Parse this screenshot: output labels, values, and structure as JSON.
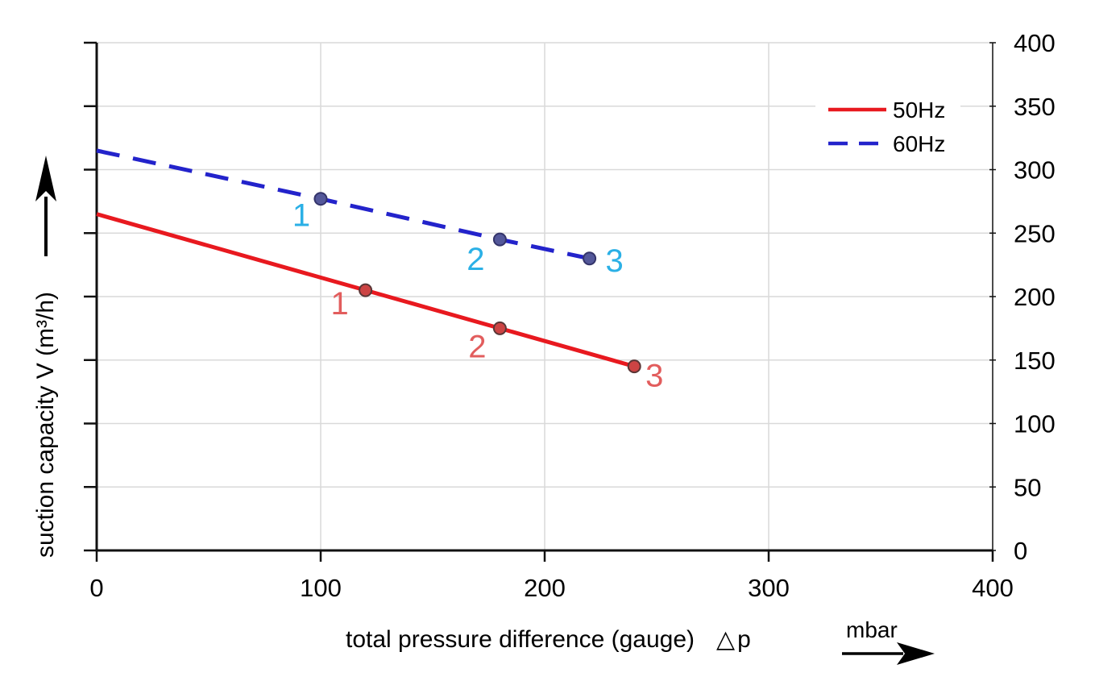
{
  "chart_data": {
    "type": "line",
    "title": "",
    "xlabel": "total pressure difference (gauge)",
    "xlabel_symbol": "△p",
    "xunit": "mbar",
    "ylabel": "suction capacity V (m³/h)",
    "xlim": [
      0,
      400
    ],
    "ylim": [
      0,
      400
    ],
    "x_ticks": [
      0,
      100,
      200,
      300,
      400
    ],
    "y_ticks": [
      0,
      50,
      100,
      150,
      200,
      250,
      300,
      350,
      400
    ],
    "y_axis_side": "right",
    "grid": true,
    "legend_position": "top-right",
    "style": {
      "grid_color": "#d9d9d9",
      "axis_color": "#111111",
      "background": "#ffffff",
      "text_color": "#000000"
    },
    "series": [
      {
        "name": "50Hz",
        "line_style": "solid",
        "color": "#e8191f",
        "marker_fill": "#cc4444",
        "marker_stroke": "#5a3636",
        "label_color": "#e25d5d",
        "x": [
          0,
          120,
          180,
          240
        ],
        "y": [
          265,
          205,
          175,
          145
        ],
        "points": [
          {
            "label": "1",
            "x": 120,
            "y": 205,
            "dx": -32,
            "dy": 17
          },
          {
            "label": "2",
            "x": 180,
            "y": 175,
            "dx": -28,
            "dy": 23
          },
          {
            "label": "3",
            "x": 240,
            "y": 145,
            "dx": 25,
            "dy": 12
          }
        ]
      },
      {
        "name": "60Hz",
        "line_style": "dashed",
        "color": "#2323cb",
        "marker_fill": "#54589a",
        "marker_stroke": "#34346a",
        "label_color": "#2bb0e6",
        "x": [
          0,
          100,
          180,
          220
        ],
        "y": [
          315,
          277,
          245,
          230
        ],
        "points": [
          {
            "label": "1",
            "x": 100,
            "y": 277,
            "dx": -24,
            "dy": 21
          },
          {
            "label": "2",
            "x": 180,
            "y": 245,
            "dx": -30,
            "dy": 25
          },
          {
            "label": "3",
            "x": 220,
            "y": 230,
            "dx": 31,
            "dy": 3
          }
        ]
      }
    ]
  }
}
